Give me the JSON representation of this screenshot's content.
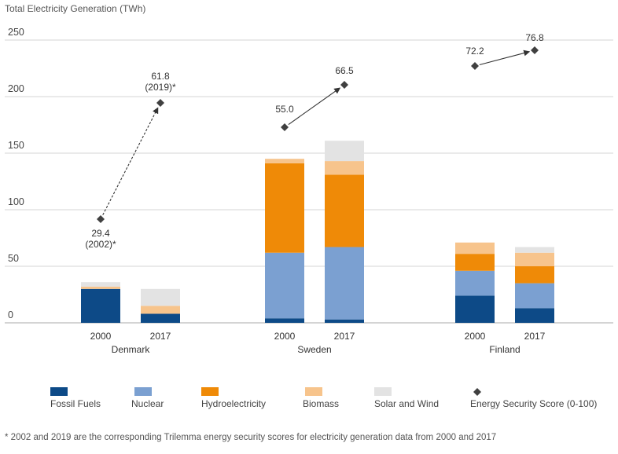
{
  "chart_data": {
    "type": "bar",
    "stacked": true,
    "ylabel": "Total Electricity Generation (TWh)",
    "ylim": [
      0,
      250
    ],
    "yticks": [
      0,
      50,
      100,
      150,
      200,
      250
    ],
    "groups": [
      {
        "country": "Denmark",
        "bars": [
          {
            "year": "2000",
            "values": [
              30,
              0,
              0,
              2,
              4
            ]
          },
          {
            "year": "2017",
            "values": [
              8,
              0,
              0,
              7,
              15
            ]
          }
        ],
        "score_labels": [
          [
            "29.4",
            "(2002)*"
          ],
          [
            "61.8",
            "(2019)*"
          ]
        ],
        "score_values": [
          29.4,
          61.8
        ]
      },
      {
        "country": "Sweden",
        "bars": [
          {
            "year": "2000",
            "values": [
              4,
              58,
              79,
              4,
              0
            ]
          },
          {
            "year": "2017",
            "values": [
              3,
              64,
              64,
              12,
              18
            ]
          }
        ],
        "score_labels": [
          [
            "55.0"
          ],
          [
            "66.5"
          ]
        ],
        "score_values": [
          55.0,
          66.5
        ]
      },
      {
        "country": "Finland",
        "bars": [
          {
            "year": "2000",
            "values": [
              24,
              22,
              15,
              10,
              0
            ]
          },
          {
            "year": "2017",
            "values": [
              13,
              22,
              15,
              12,
              5
            ]
          }
        ],
        "score_labels": [
          [
            "72.2"
          ],
          [
            "76.8"
          ]
        ],
        "score_values": [
          72.2,
          76.8
        ]
      }
    ],
    "series": [
      {
        "name": "Fossil Fuels",
        "color": "#0d4a87"
      },
      {
        "name": "Nuclear",
        "color": "#7ba0d1"
      },
      {
        "name": "Hydroelectricity",
        "color": "#ef8a07"
      },
      {
        "name": "Biomass",
        "color": "#f7c48c"
      },
      {
        "name": "Solar and Wind",
        "color": "#e3e3e3"
      }
    ],
    "score_series": {
      "name": "Energy Security Score (0-100)",
      "color": "#404040"
    },
    "score_y_value": [
      92,
      194,
      173,
      209,
      228,
      241
    ]
  },
  "footnote": "* 2002 and 2019 are the corresponding Trilemma energy security scores for electricity generation data from 2000 and 2017"
}
